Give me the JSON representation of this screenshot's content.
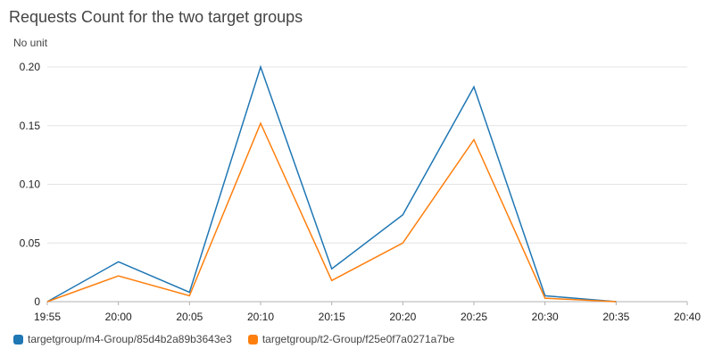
{
  "chart_data": {
    "type": "line",
    "title": "Requests Count for the two target groups",
    "ylabel": "No unit",
    "xlabel": "",
    "x": [
      "19:55",
      "20:00",
      "20:05",
      "20:10",
      "20:15",
      "20:20",
      "20:25",
      "20:30",
      "20:35",
      "20:40"
    ],
    "yticks": [
      "0",
      "0.05",
      "0.10",
      "0.15",
      "0.20"
    ],
    "ylim": [
      0,
      0.2
    ],
    "grid": true,
    "legend_position": "bottom-left",
    "series": [
      {
        "name": "targetgroup/m4-Group/85d4b2a89b3643e3",
        "color": "#1f77b4",
        "values": [
          0,
          0.034,
          0.008,
          0.2,
          0.028,
          0.074,
          0.183,
          0.005,
          0,
          null
        ]
      },
      {
        "name": "targetgroup/t2-Group/f25e0f7a0271a7be",
        "color": "#ff7f0e",
        "values": [
          0,
          0.022,
          0.005,
          0.152,
          0.018,
          0.05,
          0.138,
          0.003,
          0,
          null
        ]
      }
    ]
  }
}
